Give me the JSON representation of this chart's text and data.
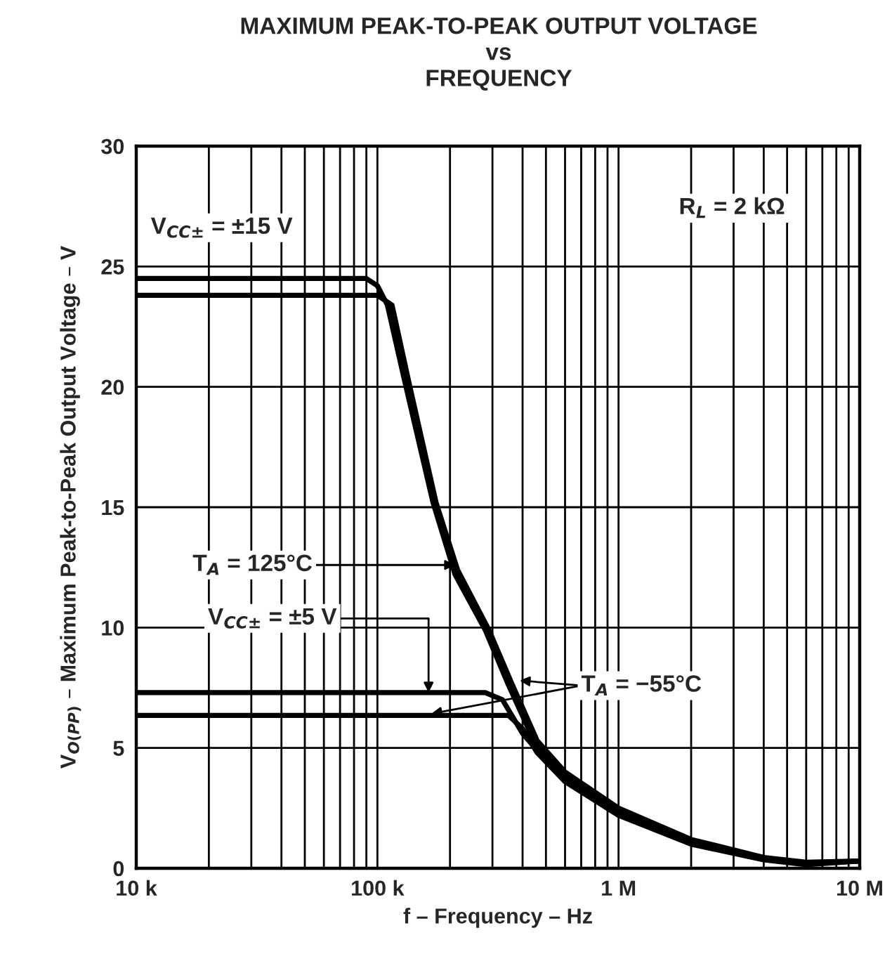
{
  "chart_data": {
    "type": "line",
    "title": "MAXIMUM PEAK-TO-PEAK OUTPUT VOLTAGE\nvs\nFREQUENCY",
    "xlabel": "f – Frequency – Hz",
    "ylabel": "V$_{O(PP)}$ – Maximum Peak-to-Peak Output Voltage – V",
    "log": "x",
    "xlim": [
      10000,
      10000000
    ],
    "xticks": [
      {
        "value": 10000,
        "label": "10 k"
      },
      {
        "value": 100000,
        "label": "100 k"
      },
      {
        "value": 1000000,
        "label": "1 M"
      },
      {
        "value": 10000000,
        "label": "10 M"
      }
    ],
    "ylim": [
      0,
      30
    ],
    "yticks": [
      0,
      5,
      10,
      15,
      20,
      25,
      30
    ],
    "grid": true,
    "legend": false,
    "line_style": "solid",
    "marker": "none",
    "annotations": [
      "V$_{CC±}$ = ±15 V",
      "R$_{L}$ = 2 kΩ",
      {
        "text": "T$_{A}$ = 125°C",
        "x": 210000,
        "y": 12.6
      },
      {
        "text": "V$_{CC±}$ = ±5 V",
        "x": 163000,
        "y": 7.3
      },
      {
        "text": "T$_{A}$ = −55°C",
        "x": 389000,
        "y": 7.8
      }
    ],
    "series": [
      {
        "color": "#000000",
        "x": [
          10000,
          90000,
          100000,
          110000,
          130000,
          170000,
          210000,
          280000,
          350000,
          450000,
          600000,
          1000000,
          2000000,
          4000000,
          6000000,
          10000000
        ],
        "values": [
          24.5,
          24.5,
          24.2,
          23.4,
          20.2,
          15.2,
          12.2,
          9.9,
          7.6,
          5.2,
          3.8,
          2.4,
          1.1,
          0.4,
          0.2,
          0.3
        ]
      },
      {
        "color": "#000000",
        "x": [
          10000,
          100000,
          115000,
          135000,
          175000,
          215000,
          290000,
          360000,
          460000,
          600000,
          1000000,
          2000000,
          4000000,
          6000000,
          10000000
        ],
        "values": [
          23.8,
          23.8,
          23.4,
          20.2,
          15.2,
          12.4,
          9.9,
          7.7,
          5.3,
          4.0,
          2.5,
          1.2,
          0.45,
          0.25,
          0.3
        ]
      },
      {
        "color": "#000000",
        "x": [
          10000,
          280000,
          330000,
          400000,
          460000,
          600000,
          1000000,
          2000000,
          4000000,
          6000000,
          10000000
        ],
        "values": [
          7.3,
          7.3,
          7.0,
          5.6,
          4.9,
          3.7,
          2.3,
          1.05,
          0.4,
          0.2,
          0.3
        ]
      },
      {
        "color": "#000000",
        "x": [
          10000,
          350000,
          400000,
          460000,
          600000,
          1000000,
          2000000,
          4000000,
          6000000,
          10000000
        ],
        "values": [
          6.35,
          6.35,
          5.8,
          4.8,
          3.6,
          2.2,
          1.0,
          0.35,
          0.15,
          0.3
        ]
      }
    ]
  }
}
